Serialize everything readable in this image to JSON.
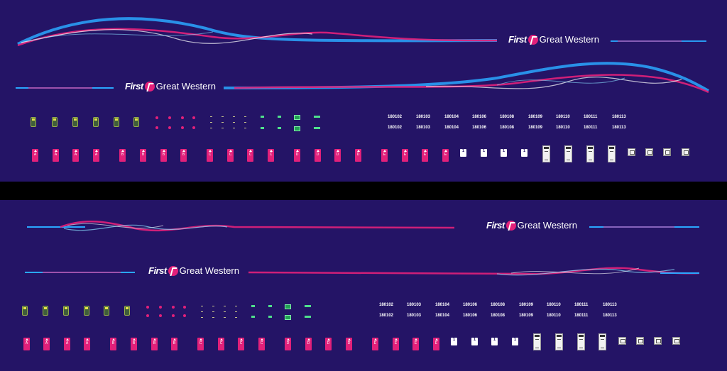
{
  "brand": {
    "first": "First",
    "great_western": "Great Western"
  },
  "colors": {
    "background": "#241466",
    "pink": "#e2207a",
    "blue": "#2aa7ff",
    "separator": "#000000"
  },
  "top_panel": {
    "numbers_row1": [
      "180102",
      "180103",
      "180104",
      "180106",
      "180108",
      "180109",
      "180110",
      "180111",
      "180113"
    ],
    "numbers_row2": [
      "180102",
      "180103",
      "180104",
      "180106",
      "180108",
      "180109",
      "180110",
      "180111",
      "180113"
    ],
    "coach_tags": [
      "A",
      "A",
      "A",
      "A",
      "B",
      "B",
      "B",
      "B",
      "C",
      "C",
      "C",
      "C",
      "D",
      "D",
      "D",
      "D",
      "E",
      "E",
      "E",
      "E"
    ],
    "class_tags": [
      "1",
      "1",
      "1",
      "1"
    ]
  },
  "bottom_panel": {
    "numbers_row1": [
      "180102",
      "180103",
      "180104",
      "180106",
      "180108",
      "180109",
      "180110",
      "180111",
      "180113"
    ],
    "numbers_row2": [
      "180102",
      "180103",
      "180104",
      "180106",
      "180108",
      "180109",
      "180110",
      "180111",
      "180113"
    ],
    "coach_tags": [
      "A",
      "A",
      "A",
      "A",
      "B",
      "B",
      "B",
      "B",
      "C",
      "C",
      "C",
      "C",
      "D",
      "D",
      "D",
      "D",
      "E",
      "E",
      "E",
      "E"
    ],
    "class_tags": [
      "1",
      "1",
      "1",
      "1"
    ]
  },
  "icons": [
    "interior-lamp-icon",
    "door-light-icon",
    "coach-letter-tag-icon",
    "first-class-tag-icon",
    "seat-plan-icon",
    "placard-icon"
  ]
}
